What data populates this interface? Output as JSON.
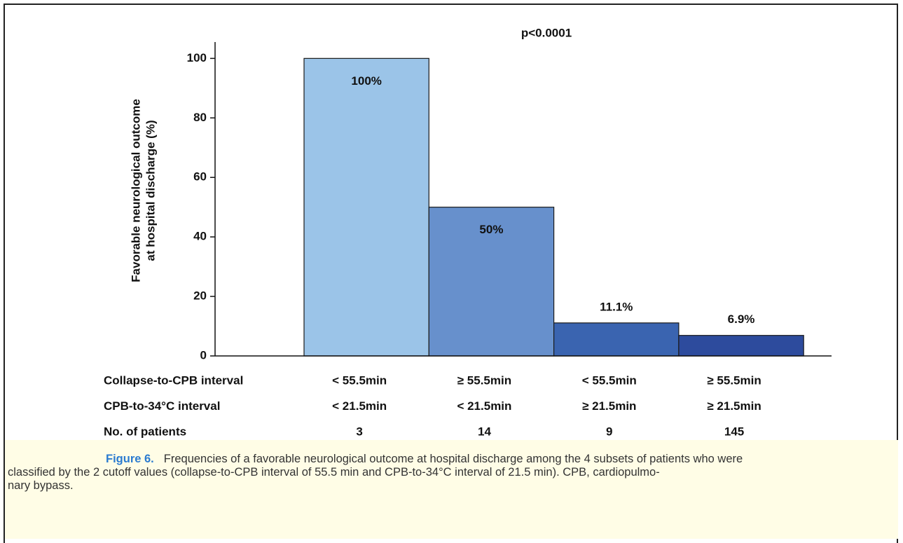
{
  "chart_data": {
    "type": "bar",
    "title": "p<0.0001",
    "ylabel": [
      "Favorable neurological outcome",
      "at hospital discharge (%)"
    ],
    "values": [
      100,
      50,
      11.1,
      6.9
    ],
    "value_labels": [
      "100%",
      "50%",
      "11.1%",
      "6.9%"
    ],
    "colors": [
      "#9bc4e8",
      "#6790cc",
      "#3a64b0",
      "#2d4b9d"
    ],
    "ylim": [
      0,
      105.5
    ],
    "yticks": [
      0,
      20,
      40,
      60,
      80,
      100
    ],
    "grid": false,
    "rows": [
      {
        "label": "Collapse-to-CPB interval",
        "cells": [
          "< 55.5min",
          "≥ 55.5min",
          "< 55.5min",
          "≥ 55.5min"
        ]
      },
      {
        "label": "CPB-to-34°C interval",
        "cells": [
          "< 21.5min",
          "< 21.5min",
          "≥ 21.5min",
          "≥ 21.5min"
        ]
      },
      {
        "label": "No. of patients",
        "cells": [
          3,
          14,
          9,
          145
        ]
      }
    ]
  },
  "caption": {
    "label": "Figure 6.",
    "lines": [
      "Frequencies of a favorable neurological outcome at hospital discharge among the 4 subsets of patients who were",
      "classified by the 2 cutoff values (collapse-to-CPB interval of 55.5 min and CPB-to-34°C interval of 21.5 min). CPB, cardiopulmo-",
      "nary bypass."
    ]
  }
}
